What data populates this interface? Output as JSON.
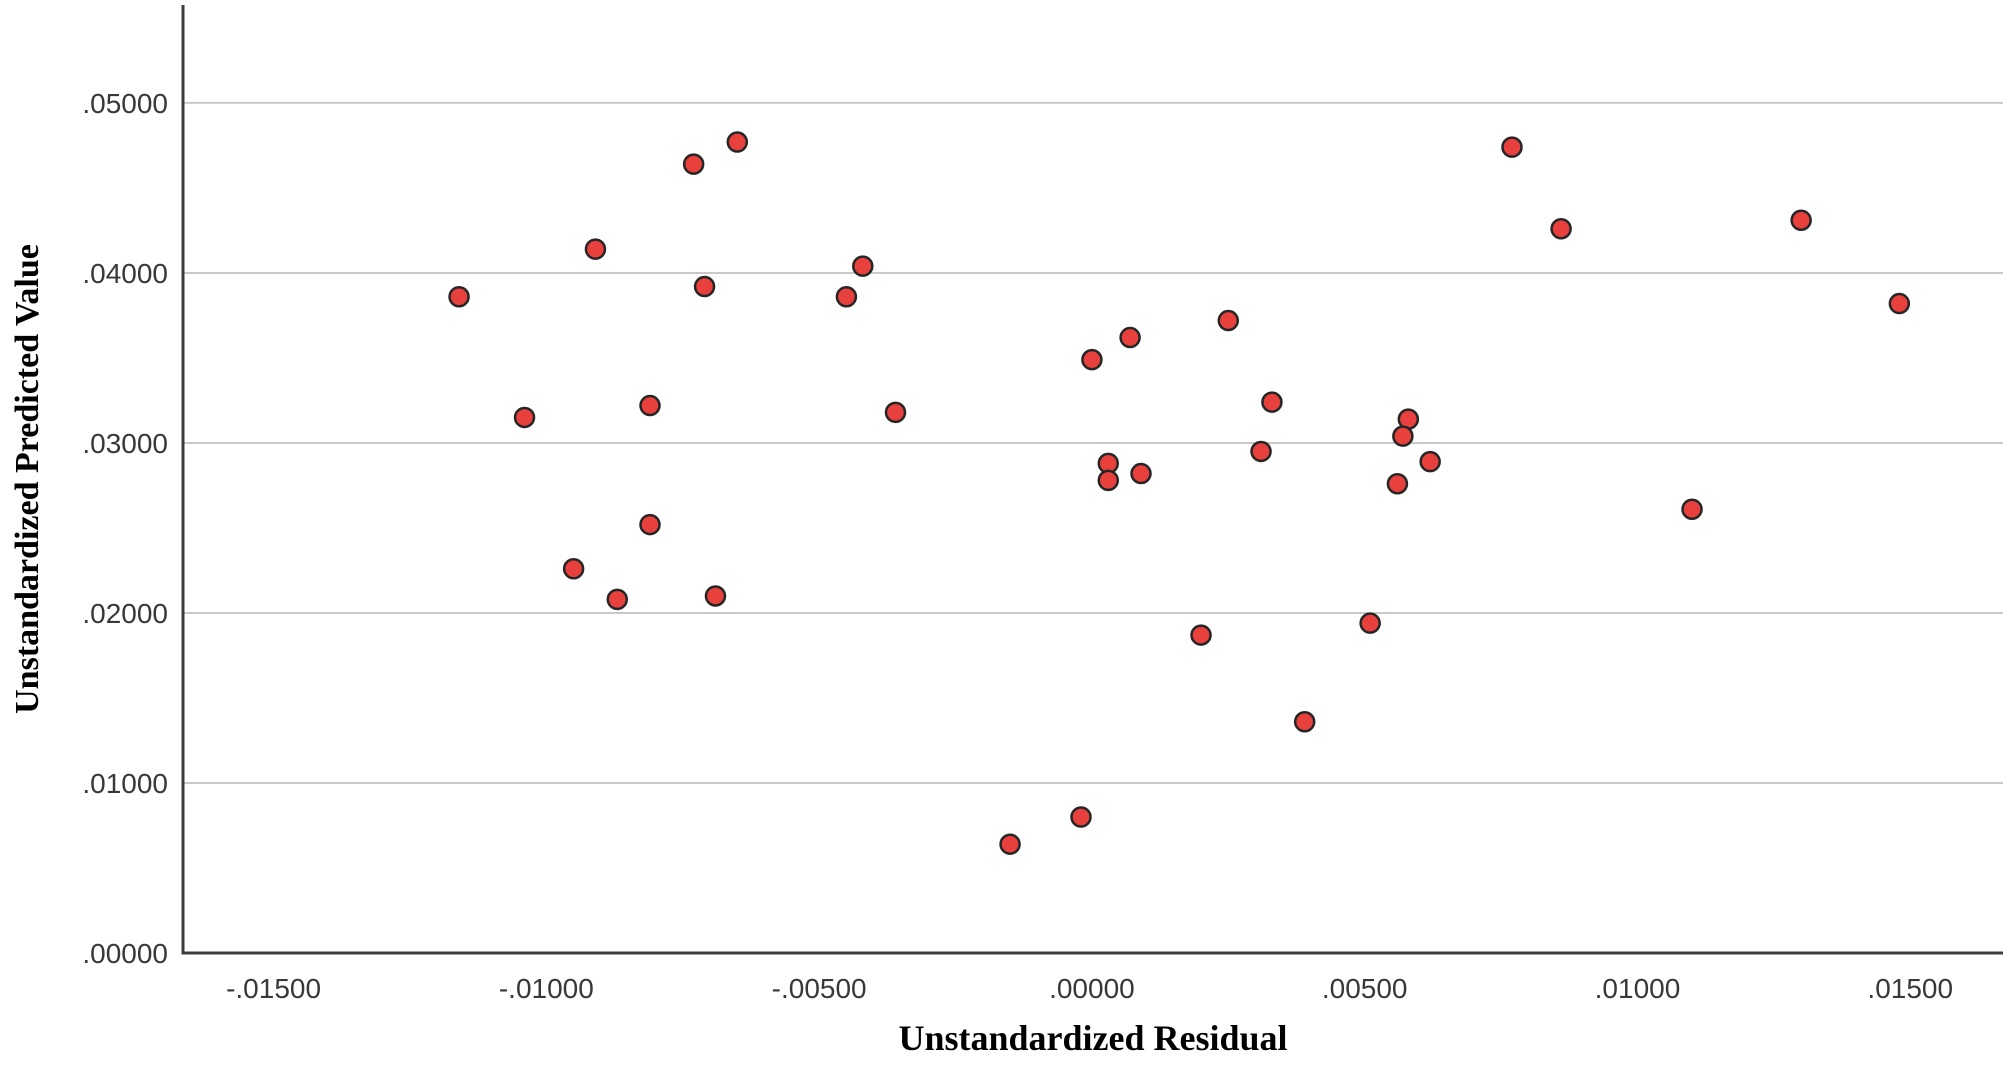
{
  "chart_data": {
    "type": "scatter",
    "title": "",
    "xlabel": "Unstandardized Residual",
    "ylabel": "Unstandardized Predicted Value",
    "legend": "none",
    "grid": "horizontal-only",
    "xlim": [
      -0.01666,
      0.0167
    ],
    "ylim": [
      0.0,
      0.05576
    ],
    "x_ticks": [
      {
        "value": -0.015,
        "label": "-.01500"
      },
      {
        "value": -0.01,
        "label": "-.01000"
      },
      {
        "value": -0.005,
        "label": "-.00500"
      },
      {
        "value": 0.0,
        "label": ".00000"
      },
      {
        "value": 0.005,
        "label": ".00500"
      },
      {
        "value": 0.01,
        "label": ".01000"
      },
      {
        "value": 0.015,
        "label": ".01500"
      }
    ],
    "y_ticks": [
      {
        "value": 0.0,
        "label": ".00000"
      },
      {
        "value": 0.01,
        "label": ".01000"
      },
      {
        "value": 0.02,
        "label": ".02000"
      },
      {
        "value": 0.03,
        "label": ".03000"
      },
      {
        "value": 0.04,
        "label": ".04000"
      },
      {
        "value": 0.05,
        "label": ".05000"
      }
    ],
    "points": [
      {
        "x": -0.0065,
        "y": 0.0477
      },
      {
        "x": -0.0073,
        "y": 0.0464
      },
      {
        "x": -0.0091,
        "y": 0.0414
      },
      {
        "x": -0.0042,
        "y": 0.0404
      },
      {
        "x": -0.0071,
        "y": 0.0392
      },
      {
        "x": -0.0045,
        "y": 0.0386
      },
      {
        "x": -0.0116,
        "y": 0.0386
      },
      {
        "x": -0.0081,
        "y": 0.0322
      },
      {
        "x": -0.0104,
        "y": 0.0315
      },
      {
        "x": -0.0036,
        "y": 0.0318
      },
      {
        "x": 0.0025,
        "y": 0.0372
      },
      {
        "x": 0.0007,
        "y": 0.0362
      },
      {
        "x": 0.0,
        "y": 0.0349
      },
      {
        "x": 0.0033,
        "y": 0.0324
      },
      {
        "x": 0.0058,
        "y": 0.0314
      },
      {
        "x": 0.0057,
        "y": 0.0304
      },
      {
        "x": 0.0031,
        "y": 0.0295
      },
      {
        "x": 0.0062,
        "y": 0.0289
      },
      {
        "x": 0.0003,
        "y": 0.0288
      },
      {
        "x": 0.0003,
        "y": 0.0278
      },
      {
        "x": 0.0009,
        "y": 0.0282
      },
      {
        "x": -0.0081,
        "y": 0.0252
      },
      {
        "x": -0.0095,
        "y": 0.0226
      },
      {
        "x": -0.0087,
        "y": 0.0208
      },
      {
        "x": -0.0069,
        "y": 0.021
      },
      {
        "x": 0.002,
        "y": 0.0187
      },
      {
        "x": 0.0051,
        "y": 0.0194
      },
      {
        "x": 0.0039,
        "y": 0.0136
      },
      {
        "x": -0.0002,
        "y": 0.008
      },
      {
        "x": -0.0015,
        "y": 0.0064
      },
      {
        "x": 0.0056,
        "y": 0.0276
      },
      {
        "x": 0.011,
        "y": 0.0261
      },
      {
        "x": 0.0077,
        "y": 0.0474
      },
      {
        "x": 0.0086,
        "y": 0.0426
      },
      {
        "x": 0.013,
        "y": 0.0431
      },
      {
        "x": 0.0148,
        "y": 0.0382
      }
    ],
    "colors": {
      "marker_fill": "#e8403d",
      "marker_stroke": "#262626",
      "gridline": "#c9c9c9",
      "axis_line": "#3d3d3d",
      "tick_text": "#383838",
      "title_text": "#000000",
      "background": "#ffffff"
    }
  }
}
